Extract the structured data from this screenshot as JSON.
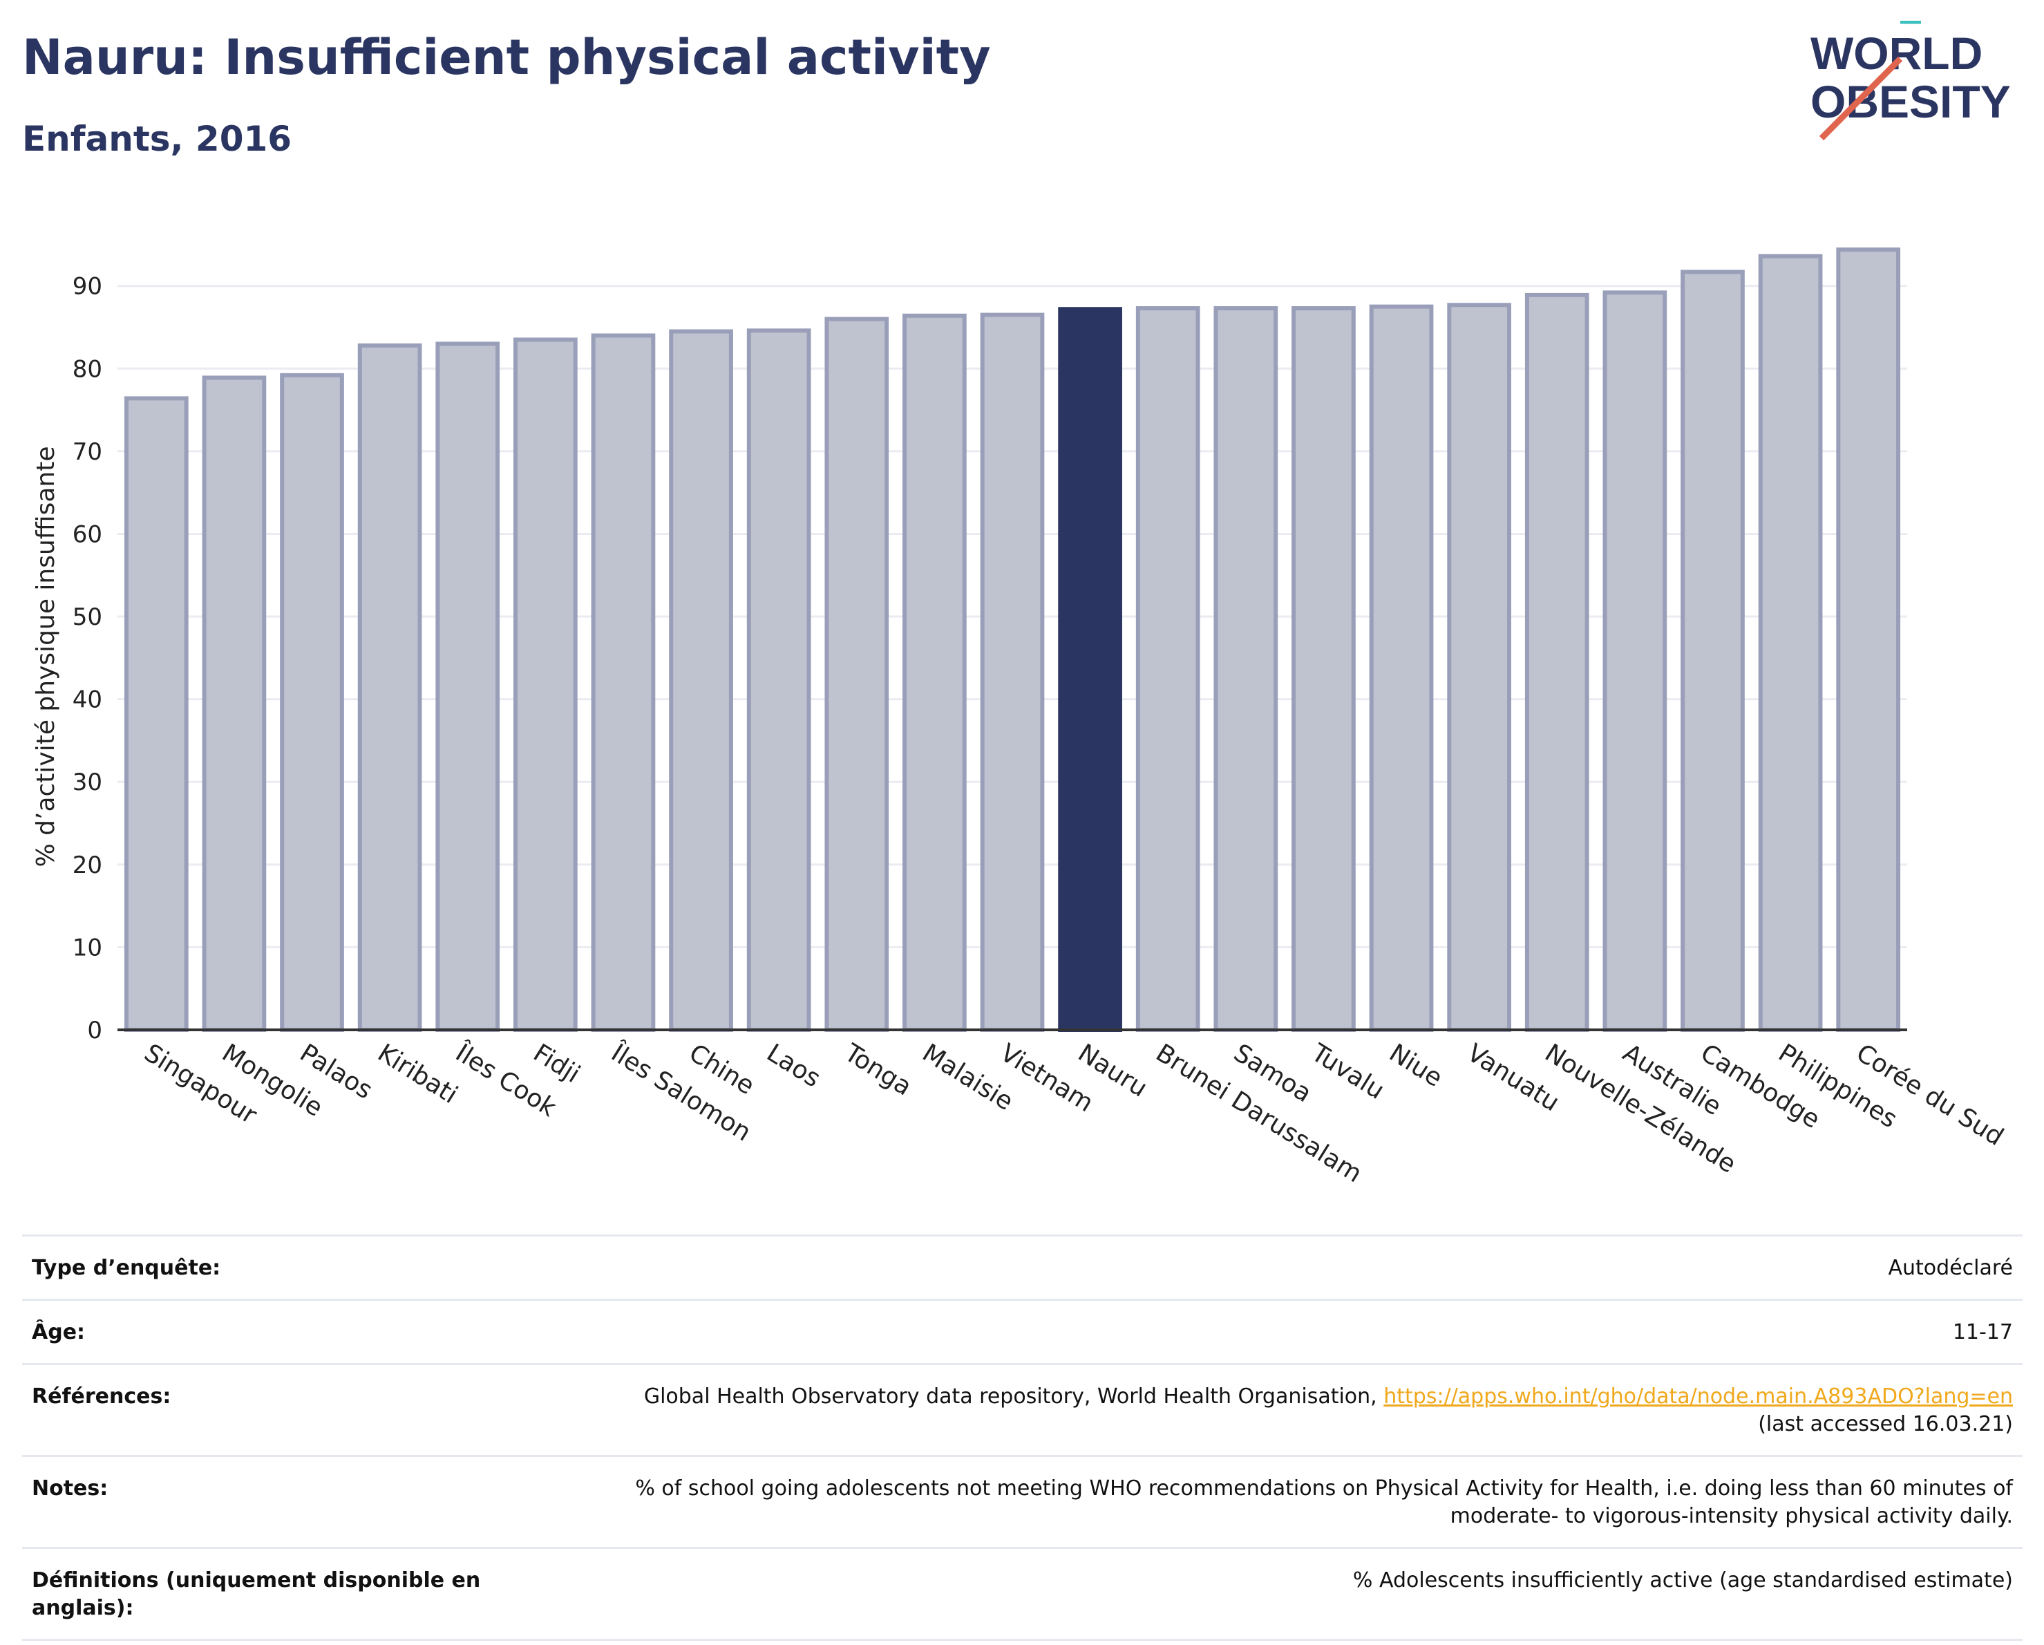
{
  "header": {
    "title": "Nauru: Insufficient physical activity",
    "subtitle": "Enfants, 2016"
  },
  "logo": {
    "line1": "WORLD",
    "line2": "OBESITY",
    "text_color": "#2b3561",
    "stroke_colors": [
      "#e0654f",
      "#3bbfbf"
    ]
  },
  "chart_data": {
    "type": "bar",
    "title": "",
    "xlabel": "",
    "ylabel": "% d’activité physique insuffisante",
    "ylim": [
      0,
      97
    ],
    "yticks": [
      0,
      10,
      20,
      30,
      40,
      50,
      60,
      70,
      80,
      90
    ],
    "grid": true,
    "highlight": "Nauru",
    "highlight_color": "#2b3561",
    "bar_color": "#bfc2cf",
    "bar_edge_color": "#9a9fb9",
    "categories": [
      "Singapour",
      "Mongolie",
      "Palaos",
      "Kiribati",
      "Îles Cook",
      "Fidji",
      "Îles Salomon",
      "Chine",
      "Laos",
      "Tonga",
      "Malaisie",
      "Vietnam",
      "Nauru",
      "Brunei Darussalam",
      "Samoa",
      "Tuvalu",
      "Niue",
      "Vanuatu",
      "Nouvelle-Zélande",
      "Australie",
      "Cambodge",
      "Philippines",
      "Corée du Sud"
    ],
    "values": [
      76.4,
      78.9,
      79.2,
      82.8,
      83.0,
      83.5,
      84.0,
      84.5,
      84.6,
      86.0,
      86.4,
      86.5,
      87.2,
      87.3,
      87.3,
      87.3,
      87.5,
      87.7,
      88.9,
      89.2,
      91.7,
      93.6,
      94.4
    ]
  },
  "info": {
    "survey_label": "Type d’enquête:",
    "survey_value": "Autodéclaré",
    "age_label": "Âge:",
    "age_value": "11-17",
    "ref_label": "Références:",
    "ref_text": "Global Health Observatory data repository, World Health Organisation,",
    "ref_link": "https://apps.who.int/gho/data/node.main.A893ADO?lang=en",
    "ref_accessed": "(last accessed 16.03.21)",
    "notes_label": "Notes:",
    "notes_line1": "% of school going adolescents not meeting WHO recommendations on Physical Activity for Health, i.e. doing less than 60 minutes of",
    "notes_line2": "moderate- to vigorous-intensity physical activity daily.",
    "def_label": "Définitions (uniquement disponible en anglais):",
    "def_value": "% Adolescents insufficiently active (age standardised estimate)"
  }
}
